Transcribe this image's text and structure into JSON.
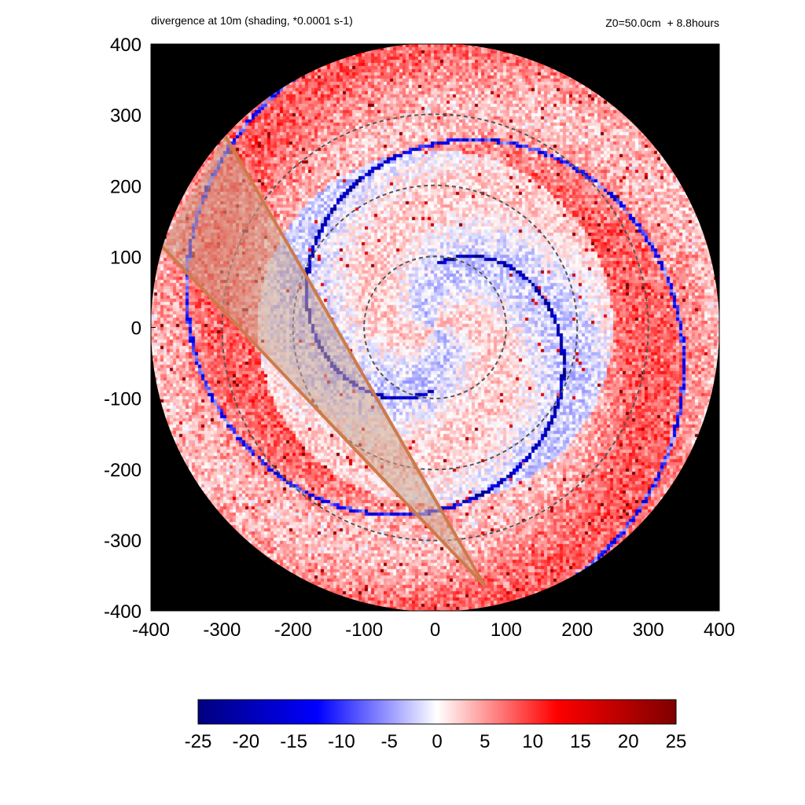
{
  "chart_data": {
    "type": "heatmap",
    "title": "divergence at 10m (shading, *0.0001 s-1)",
    "subtitle": "Z0=50.0cm  + 8.8hours",
    "xlim": [
      -400,
      400
    ],
    "ylim": [
      -400,
      400
    ],
    "x_ticks": [
      -400,
      -300,
      -200,
      -100,
      0,
      100,
      200,
      300,
      400
    ],
    "y_ticks": [
      400,
      300,
      200,
      100,
      0,
      -100,
      -200,
      -300,
      -400
    ],
    "domain_radius": 400,
    "background_outside_domain": "#000000",
    "range_rings": [
      {
        "radius": 100,
        "style": "dashed",
        "color": "#555555"
      },
      {
        "radius": 200,
        "style": "dashed",
        "color": "#555555"
      },
      {
        "radius": 300,
        "style": "dashed",
        "color": "#555555"
      }
    ],
    "sector": {
      "apex": [
        70,
        -365
      ],
      "edge_ends": [
        [
          -295,
          270
        ],
        [
          -385,
          115
        ]
      ],
      "edge_color": "#cd7a4a",
      "fill_color": "#c8a48c"
    },
    "colorbar": {
      "ticks": [
        -25,
        -20,
        -15,
        -10,
        -5,
        0,
        5,
        10,
        15,
        20,
        25
      ],
      "vmin": -25,
      "vmax": 25,
      "colormap": [
        "#00007f",
        "#0000ff",
        "#ffffff",
        "#ff0000",
        "#7f0000"
      ]
    }
  }
}
